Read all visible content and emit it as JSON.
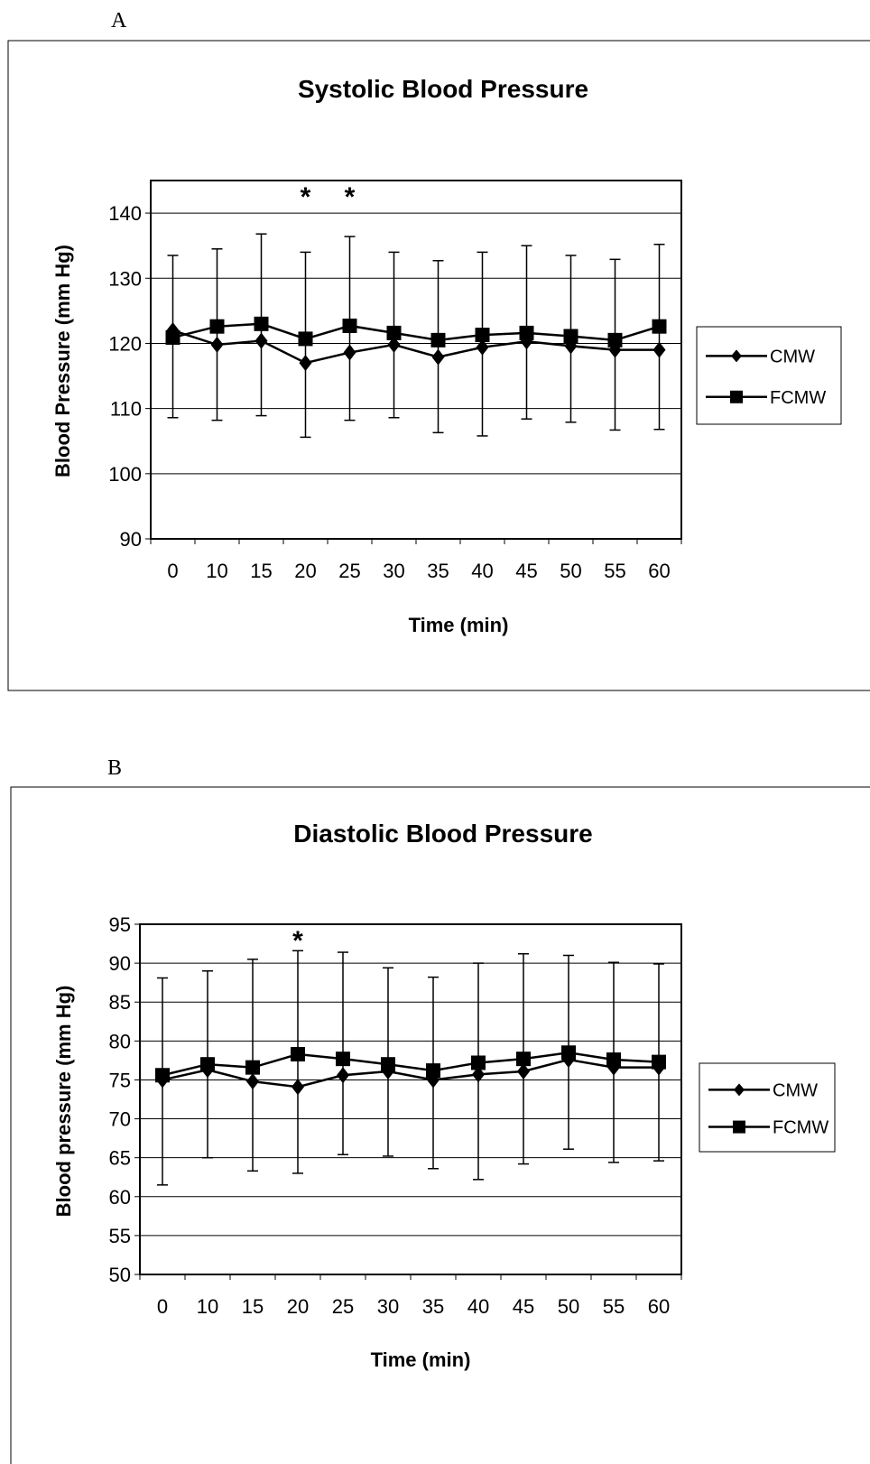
{
  "panels": {
    "a": {
      "letter": "A"
    },
    "b": {
      "letter": "B"
    }
  },
  "chart_data": [
    {
      "type": "line",
      "title": "Systolic Blood Pressure",
      "xlabel": "Time  (min)",
      "ylabel": "Blood Pressure (mm Hg)",
      "ylim": [
        90,
        145
      ],
      "yticks": [
        90,
        100,
        110,
        120,
        130,
        140
      ],
      "categories": [
        "0",
        "10",
        "15",
        "20",
        "25",
        "30",
        "35",
        "40",
        "45",
        "50",
        "55",
        "60"
      ],
      "grid": true,
      "legend": "right",
      "significance_markers": [
        {
          "category": "20",
          "label": "*"
        },
        {
          "category": "25",
          "label": "*"
        }
      ],
      "series": [
        {
          "name": "CMW",
          "marker": "diamond",
          "values": [
            122,
            119.8,
            120.4,
            117,
            118.6,
            119.8,
            117.9,
            119.4,
            120.3,
            119.6,
            119,
            119
          ],
          "error_upper": [
            133.5,
            134.5,
            136.8,
            134,
            136.4,
            134,
            132.7,
            134,
            135,
            133.5,
            132.9,
            135.2
          ],
          "error_lower": [
            108.6,
            108.2,
            108.9,
            105.6,
            108.2,
            108.6,
            106.3,
            105.8,
            108.4,
            107.9,
            106.7,
            106.8
          ]
        },
        {
          "name": "FCMW",
          "marker": "square",
          "values": [
            120.9,
            122.6,
            123,
            120.7,
            122.7,
            121.6,
            120.5,
            121.3,
            121.6,
            121.1,
            120.5,
            122.6
          ],
          "error_upper": [],
          "error_lower": []
        }
      ]
    },
    {
      "type": "line",
      "title": "Diastolic Blood Pressure",
      "xlabel": "Time  (min)",
      "ylabel": "Blood pressure (mm Hg)",
      "ylim": [
        50,
        95
      ],
      "yticks": [
        50,
        55,
        60,
        65,
        70,
        75,
        80,
        85,
        90,
        95
      ],
      "categories": [
        "0",
        "10",
        "15",
        "20",
        "25",
        "30",
        "35",
        "40",
        "45",
        "50",
        "55",
        "60"
      ],
      "grid": true,
      "legend": "right",
      "significance_markers": [
        {
          "category": "20",
          "label": "*"
        }
      ],
      "series": [
        {
          "name": "CMW",
          "marker": "diamond",
          "values": [
            75,
            76.3,
            74.8,
            74.1,
            75.6,
            76.1,
            75,
            75.7,
            76.1,
            77.6,
            76.6,
            76.6
          ],
          "error_upper": [
            88.1,
            89,
            90.5,
            91.6,
            91.4,
            89.4,
            88.2,
            90,
            91.2,
            91,
            90.1,
            89.9
          ],
          "error_lower": [
            61.5,
            65,
            63.3,
            63,
            65.4,
            65.2,
            63.6,
            62.2,
            64.2,
            66.1,
            64.4,
            64.6
          ]
        },
        {
          "name": "FCMW",
          "marker": "square",
          "values": [
            75.6,
            77,
            76.6,
            78.3,
            77.7,
            77,
            76.2,
            77.2,
            77.7,
            78.5,
            77.6,
            77.3
          ],
          "error_upper": [],
          "error_lower": []
        }
      ]
    }
  ]
}
